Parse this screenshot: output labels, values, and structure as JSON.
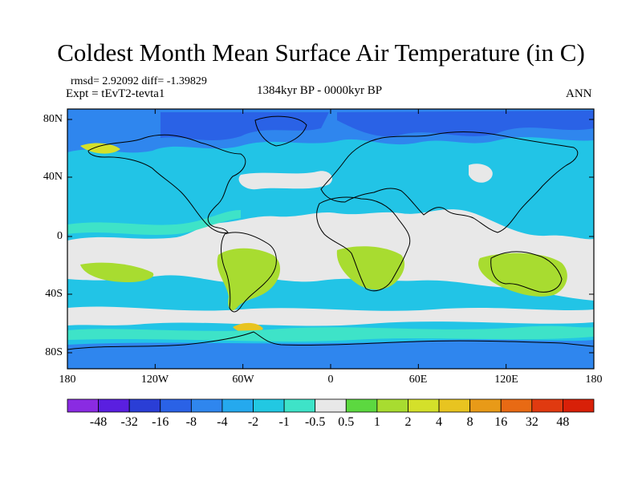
{
  "figure": {
    "title": "Coldest Month Mean Surface Air Temperature (in C)",
    "stats": "rmsd= 2.92092 diff= -1.39829",
    "experiment": "Expt = tEvT2-tevta1",
    "period": "1384kyr BP - 0000kyr BP",
    "season": "ANN"
  },
  "axes": {
    "lon_ticks": [
      "180",
      "120W",
      "60W",
      "0",
      "60E",
      "120E",
      "180"
    ],
    "lat_ticks": [
      "80N",
      "40N",
      "0",
      "40S",
      "80S"
    ]
  },
  "colorbar": {
    "labels": [
      "-48",
      "-32",
      "-16",
      "-8",
      "-4",
      "-2",
      "-1",
      "-0.5",
      "0.5",
      "1",
      "2",
      "4",
      "8",
      "16",
      "32",
      "48"
    ],
    "colors": [
      "#8a2be2",
      "#5a1fe0",
      "#2a3ed6",
      "#2a62e6",
      "#2f86ee",
      "#25a9ee",
      "#22c8e2",
      "#3ee3c8",
      "#e8e8e8",
      "#5cd840",
      "#a8dc30",
      "#d4e02a",
      "#e8c420",
      "#e89a18",
      "#e86a14",
      "#e03a10",
      "#d82008"
    ]
  },
  "map_colors": {
    "background": "#22c4e6",
    "deep_blue": "#2a62e6",
    "mid_blue": "#2f86ee",
    "neutral": "#e8e8e8",
    "teal": "#3ee3c8",
    "green": "#a8dc30",
    "yellow": "#d4e02a",
    "orange": "#e8c420",
    "coast": "#000000"
  }
}
